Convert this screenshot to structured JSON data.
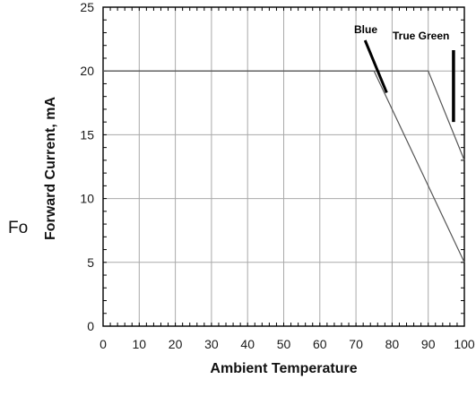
{
  "chart_data": {
    "type": "line",
    "title": "",
    "xlabel": "Ambient Temperature",
    "ylabel": "Forward Current, mA",
    "xlim": [
      0,
      100
    ],
    "ylim": [
      0,
      25
    ],
    "xticks": [
      0,
      10,
      20,
      30,
      40,
      50,
      60,
      70,
      80,
      90,
      100
    ],
    "yticks": [
      0,
      5,
      10,
      15,
      20,
      25
    ],
    "grid": true,
    "colors": {
      "grid": "#a9a9a9",
      "series": "#555555",
      "label_line": "#000000"
    },
    "series": [
      {
        "name": "Blue",
        "x": [
          0,
          75,
          100
        ],
        "y": [
          20,
          20,
          5
        ]
      },
      {
        "name": "True Green",
        "x": [
          0,
          90,
          100
        ],
        "y": [
          20,
          20,
          13
        ]
      }
    ],
    "annotations": [
      {
        "text": "Blue",
        "series": "Blue"
      },
      {
        "text": "True Green",
        "series": "True Green"
      }
    ]
  },
  "stray_text": "Fo"
}
